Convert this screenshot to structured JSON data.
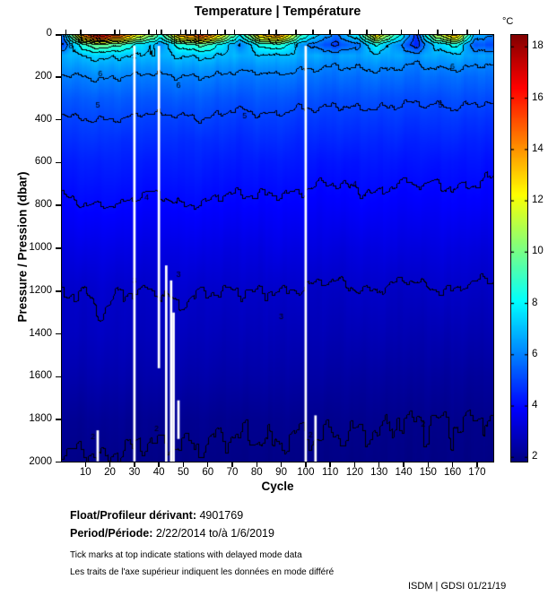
{
  "title": "Temperature | Température",
  "colorbar": {
    "unit_label": "°C",
    "ticks": [
      2,
      4,
      6,
      8,
      10,
      12,
      14,
      16,
      18
    ],
    "vmin": 1.8,
    "vmax": 18.5
  },
  "axes": {
    "x": {
      "label": "Cycle",
      "min": 0,
      "max": 177,
      "ticks": [
        10,
        20,
        30,
        40,
        50,
        60,
        70,
        80,
        90,
        100,
        110,
        120,
        130,
        140,
        150,
        160,
        170
      ]
    },
    "y": {
      "label": "Pressure / Pression (dbar)",
      "min": 0,
      "max": 2000,
      "ticks": [
        0,
        200,
        400,
        600,
        800,
        1000,
        1200,
        1400,
        1600,
        1800,
        2000
      ]
    }
  },
  "footer": {
    "float_label": "Float/Profileur dérivant:",
    "float_value": "4901769",
    "period_label": "Period/Période:",
    "period_value": "2/22/2014 to/à 1/6/2019",
    "note_en": "Tick marks at top indicate stations with delayed mode data",
    "note_fr": "Les traits de l'axe supérieur indiquent les données en mode différé",
    "credit": "ISDM | GDSI 01/21/19"
  },
  "colors": {
    "background": "#ffffff",
    "contour": "#000000",
    "missing_data": "#ffffff",
    "text": "#000000",
    "colormap": "jet"
  },
  "chart_data": {
    "type": "heatmap",
    "title": "Temperature | Température",
    "xlabel": "Cycle",
    "ylabel": "Pressure / Pression (dbar)",
    "legend": "colorbar right, unit °C",
    "grid": false,
    "x_range": [
      0,
      177
    ],
    "y_range": [
      0,
      2000
    ],
    "y_inverted": true,
    "colormap": "jet",
    "color_range": [
      1.8,
      18.5
    ],
    "x_ticks": [
      10,
      20,
      30,
      40,
      50,
      60,
      70,
      80,
      90,
      100,
      110,
      120,
      130,
      140,
      150,
      160,
      170
    ],
    "y_ticks": [
      0,
      200,
      400,
      600,
      800,
      1000,
      1200,
      1400,
      1600,
      1800,
      2000
    ],
    "colorbar_ticks": [
      2,
      4,
      6,
      8,
      10,
      12,
      14,
      16,
      18
    ],
    "contour_levels": [
      2,
      3,
      4,
      5,
      6,
      7,
      8,
      9,
      10,
      11,
      12,
      13,
      14,
      15,
      16,
      17
    ],
    "cycles_sampled": [
      1,
      9,
      17,
      25,
      33,
      41,
      49,
      57,
      65,
      73,
      81,
      89,
      97,
      105,
      113,
      121,
      129,
      137,
      145,
      153,
      161,
      169,
      177
    ],
    "pressure_levels": [
      0,
      25,
      50,
      100,
      150,
      200,
      300,
      400,
      500,
      600,
      800,
      1000,
      1200,
      1400,
      1600,
      1800,
      2000
    ],
    "temperature_grid": [
      [
        6.0,
        15.0,
        17.5,
        15.0,
        12.0,
        9.0,
        14.0,
        16.0,
        13.0,
        8.0,
        13.0,
        15.0,
        10.0,
        7.0,
        6.0,
        8.0,
        13.0,
        9.0,
        5.0,
        11.0,
        14.0,
        7.0,
        6.0
      ],
      [
        5.4,
        12.6,
        14.6,
        12.6,
        10.2,
        7.8,
        11.8,
        13.4,
        11.0,
        7.0,
        11.0,
        12.6,
        8.6,
        6.2,
        5.4,
        7.0,
        11.0,
        7.8,
        4.6,
        9.4,
        11.8,
        6.2,
        5.4
      ],
      [
        4.9,
        9.0,
        10.1,
        9.0,
        7.6,
        6.3,
        8.5,
        9.4,
        8.1,
        5.8,
        8.1,
        9.0,
        6.7,
        5.4,
        4.9,
        5.8,
        8.1,
        6.3,
        4.5,
        7.2,
        8.5,
        5.4,
        4.9
      ],
      [
        6.6,
        7.1,
        7.3,
        7.1,
        7.0,
        6.8,
        7.1,
        7.2,
        7.0,
        6.7,
        6.9,
        7.0,
        6.8,
        6.6,
        6.5,
        6.6,
        6.8,
        6.6,
        6.4,
        6.7,
        6.8,
        6.5,
        6.4
      ],
      [
        6.3,
        6.5,
        6.6,
        6.5,
        6.4,
        6.3,
        6.5,
        6.5,
        6.4,
        6.2,
        6.3,
        6.4,
        6.2,
        6.1,
        6.0,
        6.1,
        6.2,
        6.1,
        5.9,
        6.1,
        6.2,
        6.0,
        5.9
      ],
      [
        5.9,
        6.0,
        6.1,
        6.0,
        5.9,
        5.9,
        6.0,
        6.0,
        5.9,
        5.8,
        5.8,
        5.9,
        5.8,
        5.7,
        5.7,
        5.7,
        5.8,
        5.7,
        5.6,
        5.7,
        5.7,
        5.6,
        5.6
      ],
      [
        5.3,
        5.4,
        5.4,
        5.4,
        5.3,
        5.3,
        5.4,
        5.4,
        5.3,
        5.2,
        5.3,
        5.3,
        5.2,
        5.2,
        5.1,
        5.2,
        5.2,
        5.1,
        5.1,
        5.1,
        5.2,
        5.1,
        5.1
      ],
      [
        4.9,
        5.0,
        5.0,
        5.0,
        4.9,
        4.9,
        4.9,
        5.0,
        4.9,
        4.8,
        4.9,
        4.9,
        4.8,
        4.8,
        4.8,
        4.8,
        4.8,
        4.8,
        4.7,
        4.8,
        4.8,
        4.7,
        4.7
      ],
      [
        4.6,
        4.7,
        4.7,
        4.6,
        4.6,
        4.6,
        4.6,
        4.6,
        4.6,
        4.5,
        4.6,
        4.6,
        4.5,
        4.5,
        4.5,
        4.5,
        4.5,
        4.5,
        4.4,
        4.5,
        4.5,
        4.4,
        4.4
      ],
      [
        4.3,
        4.4,
        4.4,
        4.4,
        4.3,
        4.3,
        4.4,
        4.4,
        4.3,
        4.3,
        4.3,
        4.3,
        4.3,
        4.2,
        4.2,
        4.2,
        4.3,
        4.2,
        4.2,
        4.2,
        4.2,
        4.2,
        4.1
      ],
      [
        3.9,
        4.0,
        4.0,
        4.0,
        3.9,
        3.9,
        4.0,
        4.0,
        3.9,
        3.9,
        3.9,
        3.9,
        3.9,
        3.8,
        3.8,
        3.9,
        3.9,
        3.8,
        3.8,
        3.8,
        3.9,
        3.8,
        3.8
      ],
      [
        3.4,
        3.5,
        3.5,
        3.5,
        3.4,
        3.4,
        3.5,
        3.5,
        3.4,
        3.4,
        3.4,
        3.5,
        3.4,
        3.4,
        3.3,
        3.4,
        3.4,
        3.4,
        3.3,
        3.4,
        3.4,
        3.3,
        3.3
      ],
      [
        3.0,
        3.0,
        3.1,
        3.0,
        3.0,
        3.0,
        3.1,
        3.0,
        3.0,
        3.0,
        3.0,
        3.0,
        3.0,
        2.9,
        2.9,
        3.0,
        3.0,
        2.9,
        2.9,
        3.0,
        3.0,
        2.9,
        2.9
      ],
      [
        2.85,
        2.85,
        2.9,
        2.85,
        2.8,
        2.8,
        2.8,
        2.8,
        2.75,
        2.75,
        2.75,
        2.75,
        2.7,
        2.7,
        2.65,
        2.7,
        2.7,
        2.65,
        2.6,
        2.65,
        2.65,
        2.6,
        2.6
      ],
      [
        2.55,
        2.55,
        2.6,
        2.55,
        2.5,
        2.5,
        2.5,
        2.5,
        2.45,
        2.45,
        2.45,
        2.45,
        2.4,
        2.4,
        2.35,
        2.35,
        2.35,
        2.3,
        2.3,
        2.3,
        2.3,
        2.25,
        2.25
      ],
      [
        2.15,
        2.15,
        2.2,
        2.15,
        2.1,
        2.1,
        2.1,
        2.1,
        2.05,
        2.05,
        2.05,
        2.1,
        2.05,
        2.05,
        2.05,
        2.05,
        2.05,
        2.0,
        2.0,
        2.0,
        2.02,
        1.98,
        2.0
      ],
      [
        1.95,
        1.95,
        1.97,
        1.95,
        1.93,
        1.92,
        1.93,
        1.94,
        1.92,
        1.92,
        1.92,
        1.93,
        1.92,
        1.92,
        1.91,
        1.91,
        1.9,
        1.9,
        1.9,
        1.9,
        1.92,
        1.88,
        1.9
      ]
    ],
    "contour_labels": [
      {
        "level": 8,
        "cycle": 4,
        "pressure": 55
      },
      {
        "level": 9,
        "cycle": 96,
        "pressure": 50
      },
      {
        "level": 7,
        "cycle": 30,
        "pressure": 120
      },
      {
        "level": 6,
        "cycle": 16,
        "pressure": 185
      },
      {
        "level": 6,
        "cycle": 48,
        "pressure": 240
      },
      {
        "level": 6,
        "cycle": 160,
        "pressure": 150
      },
      {
        "level": 5,
        "cycle": 15,
        "pressure": 330
      },
      {
        "level": 5,
        "cycle": 75,
        "pressure": 380
      },
      {
        "level": 5,
        "cycle": 155,
        "pressure": 330
      },
      {
        "level": 4,
        "cycle": 35,
        "pressure": 760
      },
      {
        "level": 4,
        "cycle": 120,
        "pressure": 700
      },
      {
        "level": 3,
        "cycle": 30,
        "pressure": 1150
      },
      {
        "level": 3,
        "cycle": 48,
        "pressure": 1120
      },
      {
        "level": 3,
        "cycle": 90,
        "pressure": 1320
      },
      {
        "level": 2,
        "cycle": 13,
        "pressure": 1880
      },
      {
        "level": 2,
        "cycle": 39,
        "pressure": 1840
      },
      {
        "level": 2,
        "cycle": 102,
        "pressure": 1870
      },
      {
        "level": 2,
        "cycle": 148,
        "pressure": 1820
      }
    ],
    "missing_profiles": [
      {
        "cycle": 15,
        "from": 1850,
        "to": 1995
      },
      {
        "cycle": 30,
        "from": 55,
        "to": 1995
      },
      {
        "cycle": 40,
        "from": 55,
        "to": 1560
      },
      {
        "cycle": 43,
        "from": 1080,
        "to": 2000
      },
      {
        "cycle": 45,
        "from": 1150,
        "to": 2000
      },
      {
        "cycle": 46,
        "from": 1300,
        "to": 2000
      },
      {
        "cycle": 48,
        "from": 1710,
        "to": 1890
      },
      {
        "cycle": 100,
        "from": 55,
        "to": 2000
      },
      {
        "cycle": 104,
        "from": 1780,
        "to": 2000
      }
    ],
    "delayed_mode_tick_cycles": [
      2,
      8,
      22,
      24,
      36,
      39,
      41,
      49,
      51,
      53,
      55,
      57,
      60,
      64,
      67,
      71,
      85,
      88,
      96,
      103,
      110,
      118,
      125,
      131,
      139,
      146,
      154,
      160,
      166,
      171
    ]
  }
}
